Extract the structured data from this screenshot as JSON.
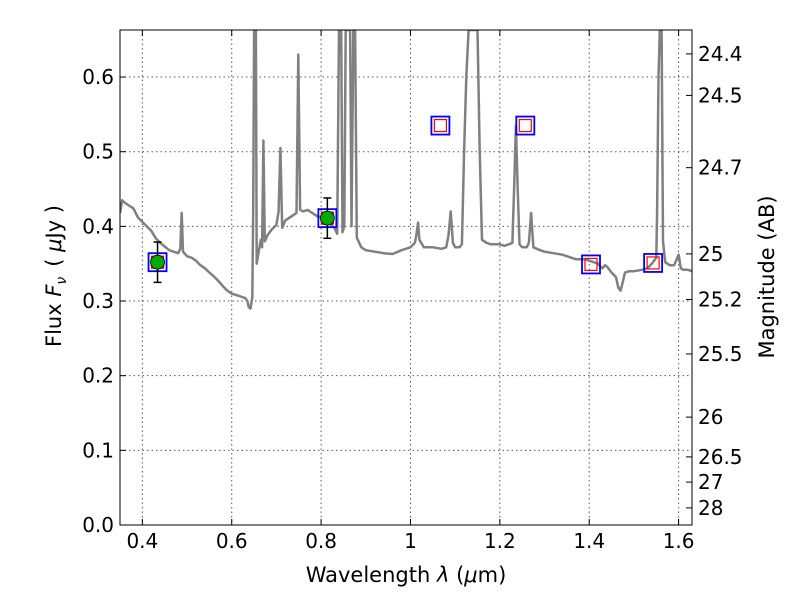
{
  "chart_data": {
    "type": "line",
    "xlabel": "Wavelength",
    "xlabel_symbol": "λ",
    "xlabel_unit_open": "(",
    "xlabel_unit_mu": "μ",
    "xlabel_unit_rest": "m)",
    "ylabel": "Flux",
    "ylabel_symbol": "F",
    "ylabel_subscript": "ν",
    "ylabel_unit_open": "(",
    "ylabel_unit_mu": "μ",
    "ylabel_unit_rest": "Jy )",
    "y2label": "Magnitude (AB)",
    "xlim": [
      0.35,
      1.63
    ],
    "ylim": [
      0.0,
      0.663
    ],
    "grid": true,
    "x_ticks": [
      0.4,
      0.6,
      0.8,
      1.0,
      1.2,
      1.4,
      1.6
    ],
    "x_tick_labels": [
      "0.4",
      "0.6",
      "0.8",
      "1",
      "1.2",
      "1.4",
      "1.6"
    ],
    "y_ticks": [
      0.0,
      0.1,
      0.2,
      0.3,
      0.4,
      0.5,
      0.6
    ],
    "y_tick_labels": [
      "0.0",
      "0.1",
      "0.2",
      "0.3",
      "0.4",
      "0.5",
      "0.6"
    ],
    "y2_ticks": [
      {
        "label": "24.4",
        "flux": 0.631
      },
      {
        "label": "24.5",
        "flux": 0.5754
      },
      {
        "label": "24.7",
        "flux": 0.4786
      },
      {
        "label": "25",
        "flux": 0.3631
      },
      {
        "label": "25.2",
        "flux": 0.302
      },
      {
        "label": "25.5",
        "flux": 0.2291
      },
      {
        "label": "26",
        "flux": 0.1445
      },
      {
        "label": "26.5",
        "flux": 0.0912
      },
      {
        "label": "27",
        "flux": 0.0575
      },
      {
        "label": "28",
        "flux": 0.0229
      }
    ],
    "colors": {
      "sed": "#808080",
      "observed_marker": "#00aa00",
      "model_box": "#0000ff",
      "model_inner": "#ff0000",
      "error_bar": "#000000"
    },
    "series": [
      {
        "kind": "model_sed_line",
        "points": [
          [
            0.35,
            0.418
          ],
          [
            0.355,
            0.435
          ],
          [
            0.36,
            0.432
          ],
          [
            0.37,
            0.428
          ],
          [
            0.38,
            0.424
          ],
          [
            0.39,
            0.412
          ],
          [
            0.4,
            0.406
          ],
          [
            0.41,
            0.4
          ],
          [
            0.42,
            0.394
          ],
          [
            0.43,
            0.384
          ],
          [
            0.44,
            0.378
          ],
          [
            0.45,
            0.373
          ],
          [
            0.46,
            0.368
          ],
          [
            0.47,
            0.366
          ],
          [
            0.48,
            0.364
          ],
          [
            0.485,
            0.37
          ],
          [
            0.488,
            0.418
          ],
          [
            0.491,
            0.366
          ],
          [
            0.5,
            0.36
          ],
          [
            0.51,
            0.358
          ],
          [
            0.52,
            0.354
          ],
          [
            0.53,
            0.348
          ],
          [
            0.54,
            0.344
          ],
          [
            0.55,
            0.338
          ],
          [
            0.56,
            0.333
          ],
          [
            0.57,
            0.327
          ],
          [
            0.58,
            0.32
          ],
          [
            0.59,
            0.314
          ],
          [
            0.6,
            0.31
          ],
          [
            0.61,
            0.308
          ],
          [
            0.62,
            0.306
          ],
          [
            0.63,
            0.304
          ],
          [
            0.635,
            0.3
          ],
          [
            0.638,
            0.292
          ],
          [
            0.642,
            0.29
          ],
          [
            0.646,
            0.305
          ],
          [
            0.648,
            0.42
          ],
          [
            0.65,
            0.663
          ],
          [
            0.654,
            0.663
          ],
          [
            0.656,
            0.35
          ],
          [
            0.66,
            0.365
          ],
          [
            0.665,
            0.382
          ],
          [
            0.668,
            0.372
          ],
          [
            0.671,
            0.515
          ],
          [
            0.674,
            0.38
          ],
          [
            0.68,
            0.388
          ],
          [
            0.69,
            0.396
          ],
          [
            0.7,
            0.402
          ],
          [
            0.705,
            0.42
          ],
          [
            0.709,
            0.505
          ],
          [
            0.713,
            0.398
          ],
          [
            0.72,
            0.408
          ],
          [
            0.73,
            0.412
          ],
          [
            0.74,
            0.416
          ],
          [
            0.745,
            0.418
          ],
          [
            0.749,
            0.63
          ],
          [
            0.753,
            0.422
          ],
          [
            0.76,
            0.42
          ],
          [
            0.77,
            0.422
          ],
          [
            0.78,
            0.418
          ],
          [
            0.79,
            0.414
          ],
          [
            0.8,
            0.412
          ],
          [
            0.81,
            0.41
          ],
          [
            0.82,
            0.406
          ],
          [
            0.825,
            0.4
          ],
          [
            0.83,
            0.398
          ],
          [
            0.836,
            0.39
          ],
          [
            0.84,
            0.663
          ],
          [
            0.845,
            0.663
          ],
          [
            0.848,
            0.392
          ],
          [
            0.852,
            0.4
          ],
          [
            0.855,
            0.663
          ],
          [
            0.86,
            0.663
          ],
          [
            0.865,
            0.663
          ],
          [
            0.868,
            0.4
          ],
          [
            0.872,
            0.663
          ],
          [
            0.876,
            0.663
          ],
          [
            0.88,
            0.385
          ],
          [
            0.89,
            0.372
          ],
          [
            0.9,
            0.368
          ],
          [
            0.92,
            0.366
          ],
          [
            0.94,
            0.364
          ],
          [
            0.96,
            0.363
          ],
          [
            0.98,
            0.368
          ],
          [
            1.0,
            0.372
          ],
          [
            1.01,
            0.378
          ],
          [
            1.013,
            0.388
          ],
          [
            1.017,
            0.405
          ],
          [
            1.02,
            0.382
          ],
          [
            1.03,
            0.372
          ],
          [
            1.05,
            0.372
          ],
          [
            1.07,
            0.37
          ],
          [
            1.08,
            0.372
          ],
          [
            1.085,
            0.388
          ],
          [
            1.09,
            0.42
          ],
          [
            1.095,
            0.378
          ],
          [
            1.1,
            0.372
          ],
          [
            1.11,
            0.372
          ],
          [
            1.115,
            0.376
          ],
          [
            1.12,
            0.5
          ],
          [
            1.125,
            0.6
          ],
          [
            1.13,
            0.663
          ],
          [
            1.15,
            0.663
          ],
          [
            1.155,
            0.5
          ],
          [
            1.16,
            0.382
          ],
          [
            1.17,
            0.378
          ],
          [
            1.18,
            0.376
          ],
          [
            1.2,
            0.376
          ],
          [
            1.21,
            0.374
          ],
          [
            1.22,
            0.376
          ],
          [
            1.228,
            0.378
          ],
          [
            1.232,
            0.45
          ],
          [
            1.236,
            0.535
          ],
          [
            1.24,
            0.45
          ],
          [
            1.244,
            0.376
          ],
          [
            1.25,
            0.372
          ],
          [
            1.26,
            0.372
          ],
          [
            1.265,
            0.378
          ],
          [
            1.27,
            0.418
          ],
          [
            1.275,
            0.372
          ],
          [
            1.29,
            0.368
          ],
          [
            1.3,
            0.366
          ],
          [
            1.32,
            0.364
          ],
          [
            1.34,
            0.362
          ],
          [
            1.36,
            0.358
          ],
          [
            1.37,
            0.356
          ],
          [
            1.38,
            0.356
          ],
          [
            1.39,
            0.356
          ],
          [
            1.4,
            0.354
          ],
          [
            1.41,
            0.352
          ],
          [
            1.42,
            0.35
          ],
          [
            1.425,
            0.346
          ],
          [
            1.43,
            0.344
          ],
          [
            1.435,
            0.348
          ],
          [
            1.44,
            0.346
          ],
          [
            1.45,
            0.338
          ],
          [
            1.455,
            0.335
          ],
          [
            1.46,
            0.332
          ],
          [
            1.465,
            0.318
          ],
          [
            1.47,
            0.314
          ],
          [
            1.475,
            0.325
          ],
          [
            1.48,
            0.338
          ],
          [
            1.49,
            0.34
          ],
          [
            1.5,
            0.34
          ],
          [
            1.52,
            0.342
          ],
          [
            1.53,
            0.344
          ],
          [
            1.54,
            0.35
          ],
          [
            1.545,
            0.354
          ],
          [
            1.55,
            0.358
          ],
          [
            1.552,
            0.42
          ],
          [
            1.555,
            0.6
          ],
          [
            1.558,
            0.663
          ],
          [
            1.562,
            0.663
          ],
          [
            1.565,
            0.38
          ],
          [
            1.57,
            0.352
          ],
          [
            1.58,
            0.348
          ],
          [
            1.59,
            0.348
          ],
          [
            1.595,
            0.355
          ],
          [
            1.6,
            0.362
          ],
          [
            1.605,
            0.344
          ],
          [
            1.61,
            0.342
          ],
          [
            1.62,
            0.342
          ],
          [
            1.63,
            0.34
          ]
        ]
      },
      {
        "kind": "model_photometry_squares",
        "points": [
          {
            "x": 0.434,
            "y": 0.352
          },
          {
            "x": 0.814,
            "y": 0.411
          },
          {
            "x": 1.067,
            "y": 0.535
          },
          {
            "x": 1.257,
            "y": 0.535
          },
          {
            "x": 1.404,
            "y": 0.349
          },
          {
            "x": 1.543,
            "y": 0.351
          }
        ]
      },
      {
        "kind": "observed_points",
        "points": [
          {
            "x": 0.434,
            "y": 0.352,
            "err": 0.027
          },
          {
            "x": 0.814,
            "y": 0.411,
            "err": 0.027
          }
        ]
      }
    ]
  }
}
